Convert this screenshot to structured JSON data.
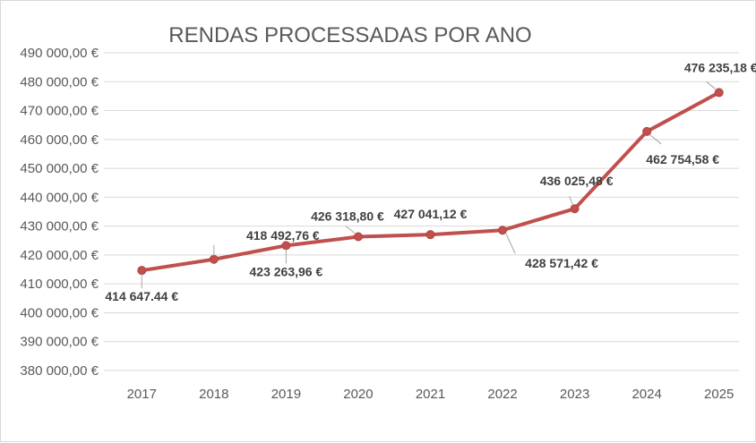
{
  "chart_data": {
    "type": "line",
    "title": "RENDAS PROCESSADAS POR ANO",
    "categories": [
      "2017",
      "2018",
      "2019",
      "2020",
      "2021",
      "2022",
      "2023",
      "2024",
      "2025"
    ],
    "values": [
      414647.44,
      418492.76,
      423263.96,
      426318.8,
      427041.12,
      428571.42,
      436025.48,
      462754.58,
      476235.18
    ],
    "data_labels": [
      "414 647.44 €",
      "418 492,76 €",
      "423 263,96 €",
      "426 318,80 €",
      "427 041,12 €",
      "428 571,42 €",
      "436 025,48 €",
      "462 754,58 €",
      "476 235,18 €"
    ],
    "ylim": [
      380000,
      490000
    ],
    "yticks": [
      490000,
      480000,
      470000,
      460000,
      450000,
      440000,
      430000,
      420000,
      410000,
      400000,
      390000,
      380000
    ],
    "ytick_labels": [
      "490 000,00 €",
      "480 000,00 €",
      "470 000,00 €",
      "460 000,00 €",
      "450 000,00 €",
      "440 000,00 €",
      "430 000,00 €",
      "420 000,00 €",
      "410 000,00 €",
      "400 000,00 €",
      "390 000,00 €",
      "380 000,00 €"
    ],
    "xlabel": "",
    "ylabel": "",
    "grid": true,
    "line_color": "#c0504d"
  }
}
